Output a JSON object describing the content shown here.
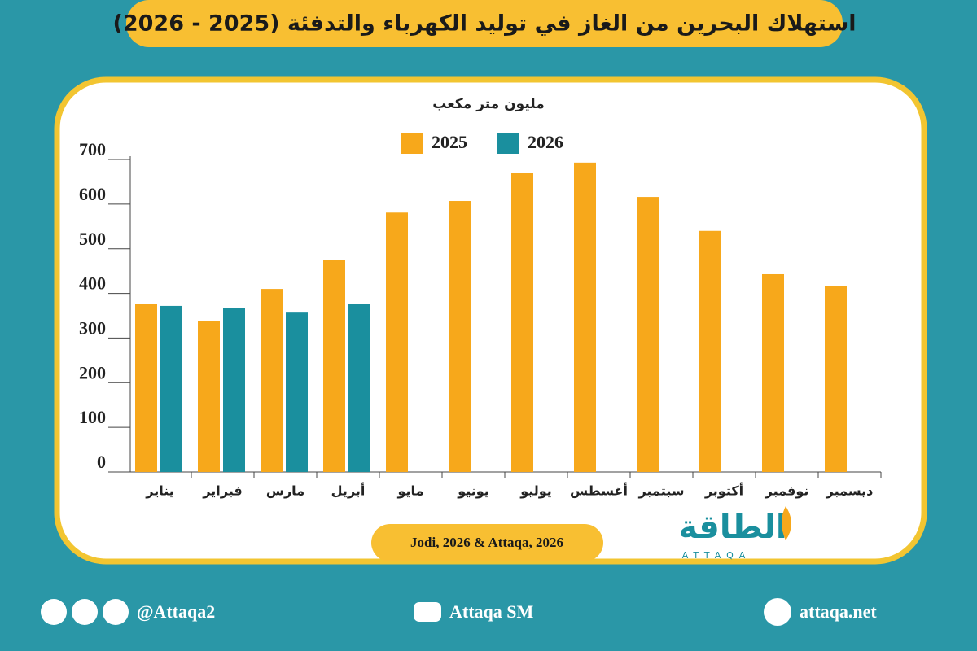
{
  "chart_data": {
    "type": "bar",
    "title": "استهلاك البحرين من الغاز في توليد الكهرباء والتدفئة (2025 - 2026)",
    "y_label": "مليون متر مكعب",
    "categories": [
      "يناير",
      "فبراير",
      "مارس",
      "أبريل",
      "مايو",
      "يونيو",
      "يوليو",
      "أغسطس",
      "سبتمبر",
      "أكتوبر",
      "نوفمبر",
      "ديسمبر"
    ],
    "series": [
      {
        "name": "2025",
        "color": "#f7a81b",
        "values": [
          377,
          339,
          410,
          474,
          581,
          607,
          669,
          693,
          616,
          540,
          443,
          416
        ]
      },
      {
        "name": "2026",
        "color": "#1a8f9e",
        "values": [
          372,
          368,
          357,
          377,
          null,
          null,
          null,
          null,
          null,
          null,
          null,
          null
        ]
      }
    ],
    "ylim": [
      0,
      700
    ],
    "yticks": [
      0,
      100,
      200,
      300,
      400,
      500,
      600,
      700
    ],
    "grid": false,
    "source": "Jodi, 2026 & Attaqa, 2026"
  },
  "logo": {
    "text": "الطاقة",
    "subtext": "ATTAQA"
  },
  "footer": {
    "social": "@Attaqa2",
    "youtube": "Attaqa SM",
    "website": "attaqa.net"
  }
}
